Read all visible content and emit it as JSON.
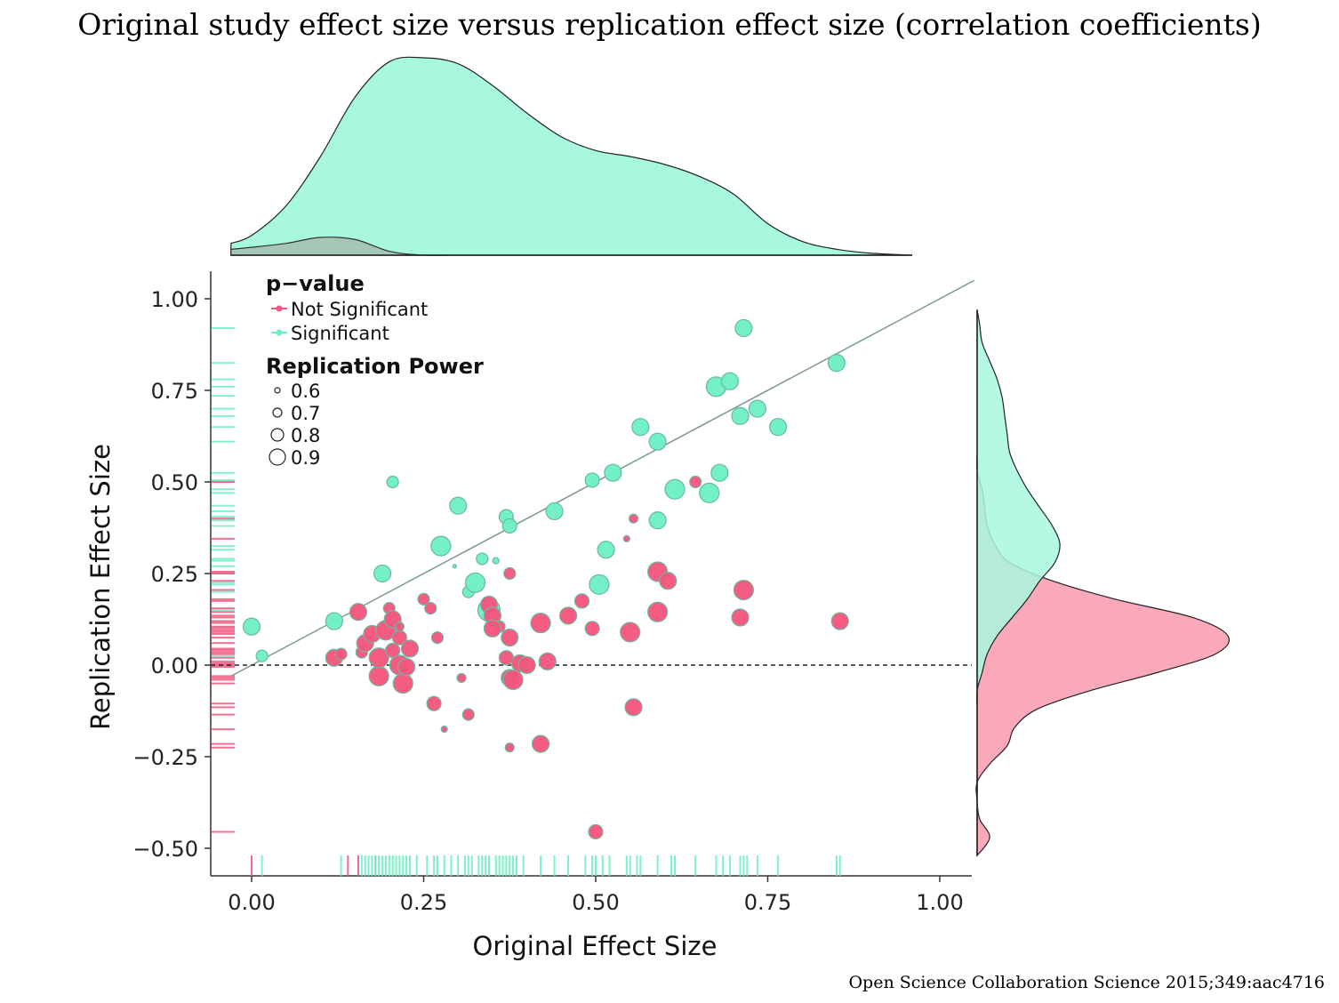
{
  "title": "Original study effect size versus replication effect size (correlation coefficients)",
  "source": "Open Science Collaboration Science 2015;349:aac4716",
  "colors": {
    "not_significant": "#f4577d",
    "significant": "#6ef0c6",
    "point_stroke": "#6ab8a0",
    "density_significant": "#a8f8de",
    "density_not_significant": "#f9a9ba",
    "density_overlap": "#a4c7b6",
    "diagonal": "#7a9a8e"
  },
  "chart_data": {
    "type": "scatter",
    "xlabel": "Original Effect Size",
    "ylabel": "Replication Effect Size",
    "xlim": [
      -0.05,
      1.05
    ],
    "ylim": [
      -0.57,
      1.07
    ],
    "xticks": [
      0.0,
      0.25,
      0.5,
      0.75,
      1.0
    ],
    "xtick_labels": [
      "0.00",
      "0.25",
      "0.50",
      "0.75",
      "1.00"
    ],
    "yticks": [
      -0.5,
      -0.25,
      0.0,
      0.25,
      0.5,
      0.75,
      1.0
    ],
    "ytick_labels": [
      "−0.50",
      "−0.25",
      "0.00",
      "0.25",
      "0.50",
      "0.75",
      "1.00"
    ],
    "reference_lines": {
      "diagonal": "y = x",
      "horizontal_dashed": 0.0
    },
    "legend": {
      "placement": "top-left",
      "color_title": "p−value",
      "color_items": [
        "Not Significant",
        "Significant"
      ],
      "size_title": "Replication Power",
      "size_items": [
        "0.6",
        "0.7",
        "0.8",
        "0.9"
      ]
    },
    "series": [
      {
        "name": "Significant",
        "points": [
          [
            0.0,
            0.105,
            0.8
          ],
          [
            0.015,
            0.025,
            0.7
          ],
          [
            0.12,
            0.12,
            0.8
          ],
          [
            0.19,
            0.25,
            0.8
          ],
          [
            0.205,
            0.5,
            0.7
          ],
          [
            0.275,
            0.325,
            0.85
          ],
          [
            0.295,
            0.27,
            0.55
          ],
          [
            0.3,
            0.435,
            0.8
          ],
          [
            0.315,
            0.2,
            0.7
          ],
          [
            0.325,
            0.225,
            0.85
          ],
          [
            0.335,
            0.29,
            0.7
          ],
          [
            0.345,
            0.15,
            0.9
          ],
          [
            0.355,
            0.285,
            0.6
          ],
          [
            0.37,
            0.405,
            0.75
          ],
          [
            0.375,
            0.38,
            0.75
          ],
          [
            0.44,
            0.42,
            0.8
          ],
          [
            0.495,
            0.505,
            0.75
          ],
          [
            0.505,
            0.22,
            0.85
          ],
          [
            0.515,
            0.315,
            0.8
          ],
          [
            0.525,
            0.525,
            0.8
          ],
          [
            0.565,
            0.65,
            0.8
          ],
          [
            0.59,
            0.61,
            0.8
          ],
          [
            0.59,
            0.395,
            0.8
          ],
          [
            0.615,
            0.48,
            0.85
          ],
          [
            0.665,
            0.47,
            0.85
          ],
          [
            0.675,
            0.76,
            0.85
          ],
          [
            0.68,
            0.525,
            0.8
          ],
          [
            0.695,
            0.775,
            0.8
          ],
          [
            0.71,
            0.68,
            0.8
          ],
          [
            0.715,
            0.92,
            0.8
          ],
          [
            0.735,
            0.7,
            0.8
          ],
          [
            0.765,
            0.65,
            0.8
          ],
          [
            0.85,
            0.825,
            0.8
          ]
        ]
      },
      {
        "name": "Not Significant",
        "points": [
          [
            0.12,
            0.02,
            0.8
          ],
          [
            0.13,
            0.03,
            0.7
          ],
          [
            0.155,
            0.145,
            0.8
          ],
          [
            0.16,
            0.035,
            0.7
          ],
          [
            0.165,
            0.06,
            0.8
          ],
          [
            0.175,
            0.085,
            0.8
          ],
          [
            0.185,
            -0.03,
            0.85
          ],
          [
            0.185,
            0.02,
            0.85
          ],
          [
            0.195,
            0.095,
            0.85
          ],
          [
            0.2,
            0.155,
            0.7
          ],
          [
            0.205,
            0.125,
            0.8
          ],
          [
            0.205,
            0.04,
            0.75
          ],
          [
            0.215,
            0.075,
            0.75
          ],
          [
            0.215,
            0.105,
            0.65
          ],
          [
            0.215,
            0.0,
            0.85
          ],
          [
            0.22,
            -0.05,
            0.85
          ],
          [
            0.225,
            -0.005,
            0.8
          ],
          [
            0.23,
            0.045,
            0.8
          ],
          [
            0.25,
            0.18,
            0.7
          ],
          [
            0.26,
            0.155,
            0.7
          ],
          [
            0.265,
            -0.105,
            0.75
          ],
          [
            0.27,
            0.075,
            0.7
          ],
          [
            0.28,
            -0.175,
            0.6
          ],
          [
            0.305,
            -0.035,
            0.65
          ],
          [
            0.315,
            -0.135,
            0.7
          ],
          [
            0.345,
            0.165,
            0.8
          ],
          [
            0.35,
            0.135,
            0.8
          ],
          [
            0.36,
            0.105,
            0.7
          ],
          [
            0.35,
            0.1,
            0.8
          ],
          [
            0.37,
            0.02,
            0.75
          ],
          [
            0.375,
            0.075,
            0.8
          ],
          [
            0.375,
            -0.035,
            0.8
          ],
          [
            0.38,
            -0.04,
            0.85
          ],
          [
            0.375,
            0.25,
            0.7
          ],
          [
            0.375,
            -0.225,
            0.65
          ],
          [
            0.39,
            0.005,
            0.8
          ],
          [
            0.4,
            0.0,
            0.8
          ],
          [
            0.42,
            0.115,
            0.85
          ],
          [
            0.42,
            -0.215,
            0.8
          ],
          [
            0.43,
            0.01,
            0.8
          ],
          [
            0.46,
            0.135,
            0.8
          ],
          [
            0.48,
            0.175,
            0.75
          ],
          [
            0.495,
            0.1,
            0.75
          ],
          [
            0.5,
            -0.455,
            0.75
          ],
          [
            0.545,
            0.345,
            0.6
          ],
          [
            0.55,
            0.09,
            0.85
          ],
          [
            0.555,
            0.4,
            0.65
          ],
          [
            0.555,
            -0.115,
            0.8
          ],
          [
            0.59,
            0.145,
            0.85
          ],
          [
            0.59,
            0.255,
            0.85
          ],
          [
            0.605,
            0.23,
            0.8
          ],
          [
            0.645,
            0.5,
            0.7
          ],
          [
            0.71,
            0.13,
            0.8
          ],
          [
            0.715,
            0.205,
            0.85
          ],
          [
            0.855,
            0.12,
            0.8
          ]
        ]
      }
    ],
    "rug_x": {
      "Not Significant": [
        0.0,
        0.14,
        0.155,
        0.18
      ],
      "Significant": [
        0.015,
        0.13,
        0.16,
        0.165,
        0.17,
        0.175,
        0.18,
        0.185,
        0.19,
        0.195,
        0.2,
        0.205,
        0.21,
        0.215,
        0.22,
        0.225,
        0.23,
        0.24,
        0.255,
        0.265,
        0.27,
        0.28,
        0.29,
        0.3,
        0.31,
        0.315,
        0.32,
        0.33,
        0.335,
        0.34,
        0.345,
        0.355,
        0.36,
        0.365,
        0.37,
        0.375,
        0.38,
        0.385,
        0.395,
        0.42,
        0.44,
        0.46,
        0.485,
        0.495,
        0.5,
        0.51,
        0.52,
        0.545,
        0.55,
        0.56,
        0.565,
        0.59,
        0.61,
        0.615,
        0.645,
        0.675,
        0.685,
        0.695,
        0.71,
        0.715,
        0.72,
        0.735,
        0.765,
        0.85,
        0.855
      ]
    },
    "rug_y": {
      "Significant": [
        0.92,
        0.825,
        0.78,
        0.76,
        0.735,
        0.7,
        0.68,
        0.65,
        0.61,
        0.525,
        0.505,
        0.5,
        0.48,
        0.47,
        0.435,
        0.42,
        0.405,
        0.395,
        0.38,
        0.325,
        0.315,
        0.29,
        0.285,
        0.27,
        0.25,
        0.225,
        0.22,
        0.2,
        0.15,
        0.12,
        0.105,
        0.025
      ],
      "Not Significant": [
        0.5,
        0.4,
        0.345,
        0.255,
        0.25,
        0.23,
        0.205,
        0.18,
        0.175,
        0.155,
        0.145,
        0.135,
        0.13,
        0.12,
        0.115,
        0.105,
        0.1,
        0.095,
        0.09,
        0.085,
        0.075,
        0.06,
        0.045,
        0.04,
        0.035,
        0.03,
        0.02,
        0.01,
        0.005,
        0.0,
        -0.005,
        -0.03,
        -0.035,
        -0.04,
        -0.05,
        -0.105,
        -0.115,
        -0.135,
        -0.175,
        -0.215,
        -0.225,
        -0.455
      ]
    },
    "marginal_x_density": {
      "x": [
        -0.03,
        0.0,
        0.05,
        0.1,
        0.15,
        0.2,
        0.25,
        0.3,
        0.35,
        0.4,
        0.45,
        0.5,
        0.55,
        0.6,
        0.65,
        0.7,
        0.75,
        0.8,
        0.85,
        0.9,
        0.96
      ],
      "Significant": [
        0.06,
        0.1,
        0.25,
        0.5,
        0.8,
        0.98,
        1.0,
        0.97,
        0.86,
        0.72,
        0.6,
        0.53,
        0.5,
        0.46,
        0.4,
        0.31,
        0.16,
        0.07,
        0.03,
        0.01,
        0.0
      ],
      "Not Significant": [
        0.03,
        0.04,
        0.06,
        0.09,
        0.08,
        0.02,
        0.0,
        0.0,
        0.0,
        0.0,
        0.0,
        0.0,
        0.0,
        0.0,
        0.0,
        0.0,
        0.0,
        0.0,
        0.0,
        0.0,
        0.0
      ]
    },
    "marginal_y_density": {
      "y": [
        -0.52,
        -0.47,
        -0.42,
        -0.37,
        -0.32,
        -0.27,
        -0.22,
        -0.17,
        -0.12,
        -0.07,
        -0.02,
        0.03,
        0.08,
        0.13,
        0.18,
        0.23,
        0.28,
        0.33,
        0.38,
        0.43,
        0.48,
        0.53,
        0.58,
        0.63,
        0.68,
        0.73,
        0.78,
        0.83,
        0.88,
        0.93,
        0.97
      ],
      "Not Significant": [
        0.0,
        0.05,
        0.01,
        0.0,
        0.0,
        0.05,
        0.12,
        0.15,
        0.24,
        0.45,
        0.72,
        0.95,
        1.0,
        0.86,
        0.55,
        0.3,
        0.13,
        0.07,
        0.04,
        0.03,
        0.02,
        0.0,
        0.0,
        0.0,
        0.0,
        0.0,
        0.0,
        0.0,
        0.0,
        0.0,
        0.0
      ],
      "Significant": [
        0.0,
        0.0,
        0.0,
        0.0,
        0.0,
        0.0,
        0.0,
        0.0,
        0.0,
        0.0,
        0.02,
        0.04,
        0.08,
        0.14,
        0.2,
        0.25,
        0.31,
        0.33,
        0.3,
        0.25,
        0.2,
        0.16,
        0.13,
        0.12,
        0.11,
        0.1,
        0.08,
        0.05,
        0.02,
        0.01,
        0.0
      ]
    }
  }
}
